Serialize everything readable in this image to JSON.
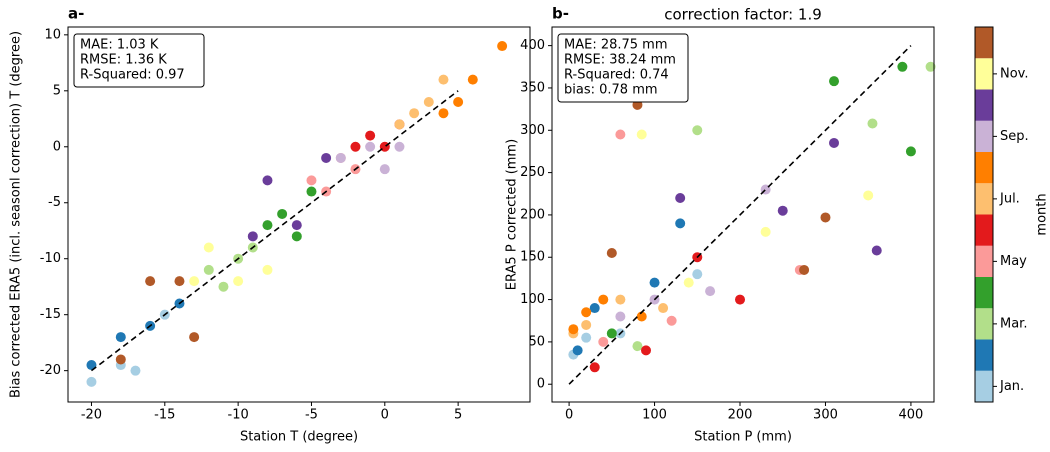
{
  "chart_data": [
    {
      "type": "scatter",
      "panel_label": "a-",
      "xlabel": "Station T (degree)",
      "ylabel": "Bias corrected ERA5 (incl. seasonl correction) T (degree)",
      "annotation": [
        "MAE: 1.03 K",
        "RMSE: 1.36 K",
        "R-Squared: 0.97"
      ],
      "xlim": [
        -21.6,
        9.9
      ],
      "ylim": [
        -22.8,
        10.7
      ],
      "xticks": [
        -20,
        -15,
        -10,
        -5,
        0,
        5
      ],
      "yticks": [
        -20,
        -15,
        -10,
        -5,
        0,
        5,
        10
      ],
      "x": [
        -20,
        -18,
        -17,
        -15,
        -20,
        -18,
        -16,
        -14,
        -12,
        -10,
        -11,
        -9,
        -8,
        -7,
        -6,
        -5,
        -4,
        -2,
        -3,
        -5,
        -1,
        0,
        1,
        -2,
        2,
        4,
        3,
        1,
        5,
        8,
        6,
        4,
        -1,
        0,
        -3,
        1,
        -8,
        -6,
        -4,
        -9,
        -13,
        -10,
        -8,
        -12,
        -16,
        -14,
        -18,
        -13
      ],
      "y": [
        -21,
        -19.5,
        -20,
        -15,
        -19.5,
        -17,
        -16,
        -14,
        -11,
        -10,
        -12.5,
        -9,
        -7,
        -6,
        -8,
        -4,
        -4,
        -2,
        -1,
        -3,
        1,
        0,
        2,
        0,
        3,
        6,
        4,
        2,
        4,
        9,
        6,
        3,
        0,
        -2,
        -1,
        0,
        -3,
        -7,
        -1,
        -8,
        -12,
        -12,
        -11,
        -9,
        -12,
        -12,
        -19,
        -17
      ],
      "month": [
        1,
        1,
        1,
        1,
        2,
        2,
        2,
        2,
        3,
        3,
        3,
        3,
        4,
        4,
        4,
        4,
        5,
        5,
        5,
        5,
        6,
        6,
        6,
        6,
        7,
        7,
        7,
        7,
        8,
        8,
        8,
        8,
        9,
        9,
        9,
        9,
        10,
        10,
        10,
        10,
        11,
        11,
        11,
        11,
        12,
        12,
        12,
        12
      ],
      "line": {
        "x": [
          -20,
          5
        ],
        "y": [
          -20,
          5
        ]
      }
    },
    {
      "type": "scatter",
      "panel_label": "b-",
      "title": "correction factor: 1.9",
      "xlabel": "Station P (mm)",
      "ylabel": "ERA5 P corrected (mm)",
      "annotation": [
        "MAE: 28.75 mm",
        "RMSE: 38.24 mm",
        "R-Squared: 0.74",
        "bias: 0.78 mm"
      ],
      "xlim": [
        -20,
        427
      ],
      "ylim": [
        -21,
        422
      ],
      "xticks": [
        0,
        100,
        200,
        300,
        400
      ],
      "yticks": [
        0,
        50,
        100,
        150,
        200,
        250,
        300,
        350,
        400
      ],
      "x": [
        5,
        20,
        60,
        150,
        10,
        100,
        130,
        30,
        150,
        423,
        355,
        80,
        400,
        310,
        390,
        50,
        60,
        120,
        270,
        40,
        90,
        30,
        150,
        200,
        20,
        5,
        110,
        60,
        5,
        20,
        85,
        40,
        100,
        165,
        230,
        60,
        360,
        310,
        250,
        130,
        350,
        85,
        140,
        230,
        300,
        80,
        275,
        50
      ],
      "y": [
        35,
        55,
        60,
        130,
        40,
        120,
        190,
        90,
        300,
        375,
        308,
        45,
        275,
        358,
        375,
        60,
        295,
        75,
        135,
        50,
        40,
        20,
        150,
        100,
        70,
        60,
        90,
        100,
        65,
        85,
        80,
        100,
        100,
        110,
        230,
        80,
        158,
        285,
        205,
        220,
        223,
        295,
        120,
        180,
        197,
        330,
        135,
        155
      ],
      "month": [
        1,
        1,
        1,
        1,
        2,
        2,
        2,
        2,
        3,
        3,
        3,
        3,
        4,
        4,
        4,
        4,
        5,
        5,
        5,
        5,
        6,
        6,
        6,
        6,
        7,
        7,
        7,
        7,
        8,
        8,
        8,
        8,
        9,
        9,
        9,
        9,
        10,
        10,
        10,
        10,
        11,
        11,
        11,
        11,
        12,
        12,
        12,
        12
      ],
      "line": {
        "x": [
          0,
          400
        ],
        "y": [
          0,
          400
        ]
      }
    }
  ],
  "colorbar": {
    "label": "month",
    "clim": [
      0.5,
      12.5
    ],
    "colors": [
      "#a6cee3",
      "#1f78b4",
      "#b2df8a",
      "#33a02c",
      "#fb9a99",
      "#e31a1c",
      "#fdbf6f",
      "#ff7f00",
      "#cab2d6",
      "#6a3d9a",
      "#ffff99",
      "#b15928"
    ],
    "ticks": [
      {
        "value": 1,
        "label": "Jan."
      },
      {
        "value": 3,
        "label": "Mar."
      },
      {
        "value": 5,
        "label": "May"
      },
      {
        "value": 7,
        "label": "Jul."
      },
      {
        "value": 9,
        "label": "Sep."
      },
      {
        "value": 11,
        "label": "Nov."
      }
    ]
  }
}
